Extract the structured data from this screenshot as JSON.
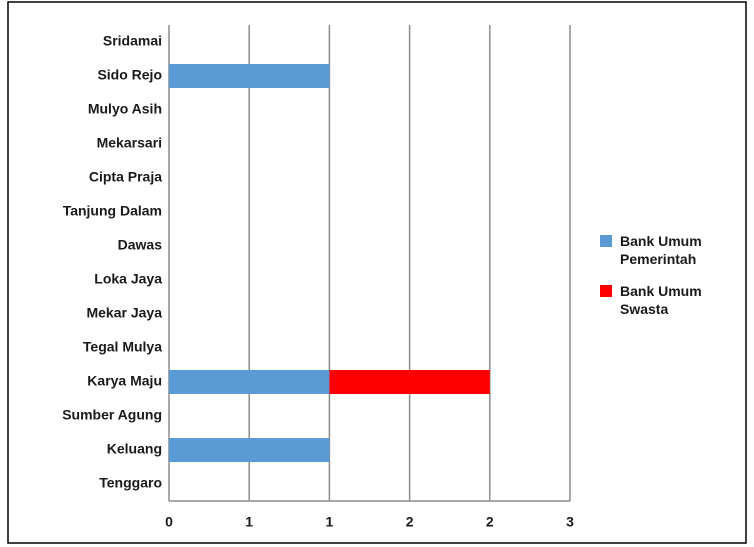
{
  "chart_data": {
    "type": "bar",
    "orientation": "horizontal",
    "stacked": true,
    "categories": [
      "Sridamai",
      "Sido Rejo",
      "Mulyo Asih",
      "Mekarsari",
      "Cipta Praja",
      "Tanjung Dalam",
      "Dawas",
      "Loka Jaya",
      "Mekar Jaya",
      "Tegal Mulya",
      "Karya Maju",
      "Sumber Agung",
      "Keluang",
      "Tenggaro"
    ],
    "series": [
      {
        "name": "Bank Umum Pemerintah",
        "color": "#5b9bd5",
        "values": [
          0,
          1,
          0,
          0,
          0,
          0,
          0,
          0,
          0,
          0,
          1,
          0,
          1,
          0
        ]
      },
      {
        "name": "Bank Umum Swasta",
        "color": "#ff0000",
        "values": [
          0,
          0,
          0,
          0,
          0,
          0,
          0,
          0,
          0,
          0,
          1,
          0,
          0,
          0
        ]
      }
    ],
    "xlim": [
      0,
      2.5
    ],
    "xticks": [
      0,
      {
        "value": 0.5,
        "label": "1"
      },
      1,
      {
        "value": 1.5,
        "label": "2"
      },
      2,
      {
        "value": 2.5,
        "label": "3"
      }
    ],
    "grid": true,
    "legend": "right"
  }
}
